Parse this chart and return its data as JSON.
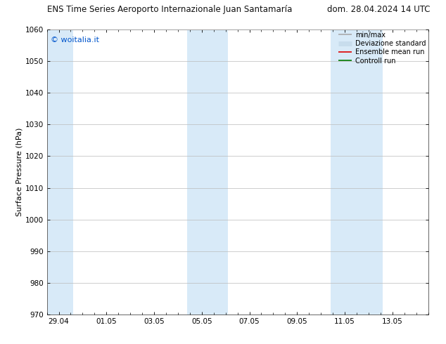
{
  "title_left": "ENS Time Series Aeroporto Internazionale Juan Santamaría",
  "title_right": "dom. 28.04.2024 14 UTC",
  "ylabel": "Surface Pressure (hPa)",
  "ylim": [
    970,
    1060
  ],
  "yticks": [
    970,
    980,
    990,
    1000,
    1010,
    1020,
    1030,
    1040,
    1050,
    1060
  ],
  "xtick_labels": [
    "29.04",
    "01.05",
    "03.05",
    "05.05",
    "07.05",
    "09.05",
    "11.05",
    "13.05"
  ],
  "xtick_positions": [
    0,
    2,
    4,
    6,
    8,
    10,
    12,
    14
  ],
  "xlim": [
    -0.5,
    15.5
  ],
  "shaded_bands": [
    {
      "x_start": -0.5,
      "x_end": 0.6,
      "color": "#d8eaf8"
    },
    {
      "x_start": 5.4,
      "x_end": 7.1,
      "color": "#d8eaf8"
    },
    {
      "x_start": 11.4,
      "x_end": 13.6,
      "color": "#d8eaf8"
    }
  ],
  "watermark_text": "© woitalia.it",
  "watermark_color": "#0055cc",
  "legend_items": [
    {
      "label": "min/max",
      "color": "#aaaaaa",
      "lw": 1.2,
      "style": "solid"
    },
    {
      "label": "Deviazione standard",
      "color": "#c8dded",
      "lw": 5,
      "style": "solid"
    },
    {
      "label": "Ensemble mean run",
      "color": "#dd0000",
      "lw": 1.2,
      "style": "solid"
    },
    {
      "label": "Controll run",
      "color": "#007700",
      "lw": 1.2,
      "style": "solid"
    }
  ],
  "bg_color": "#ffffff",
  "grid_color": "#bbbbbb",
  "title_fontsize": 8.5,
  "tick_fontsize": 7.5,
  "ylabel_fontsize": 8,
  "watermark_fontsize": 8,
  "legend_fontsize": 7
}
